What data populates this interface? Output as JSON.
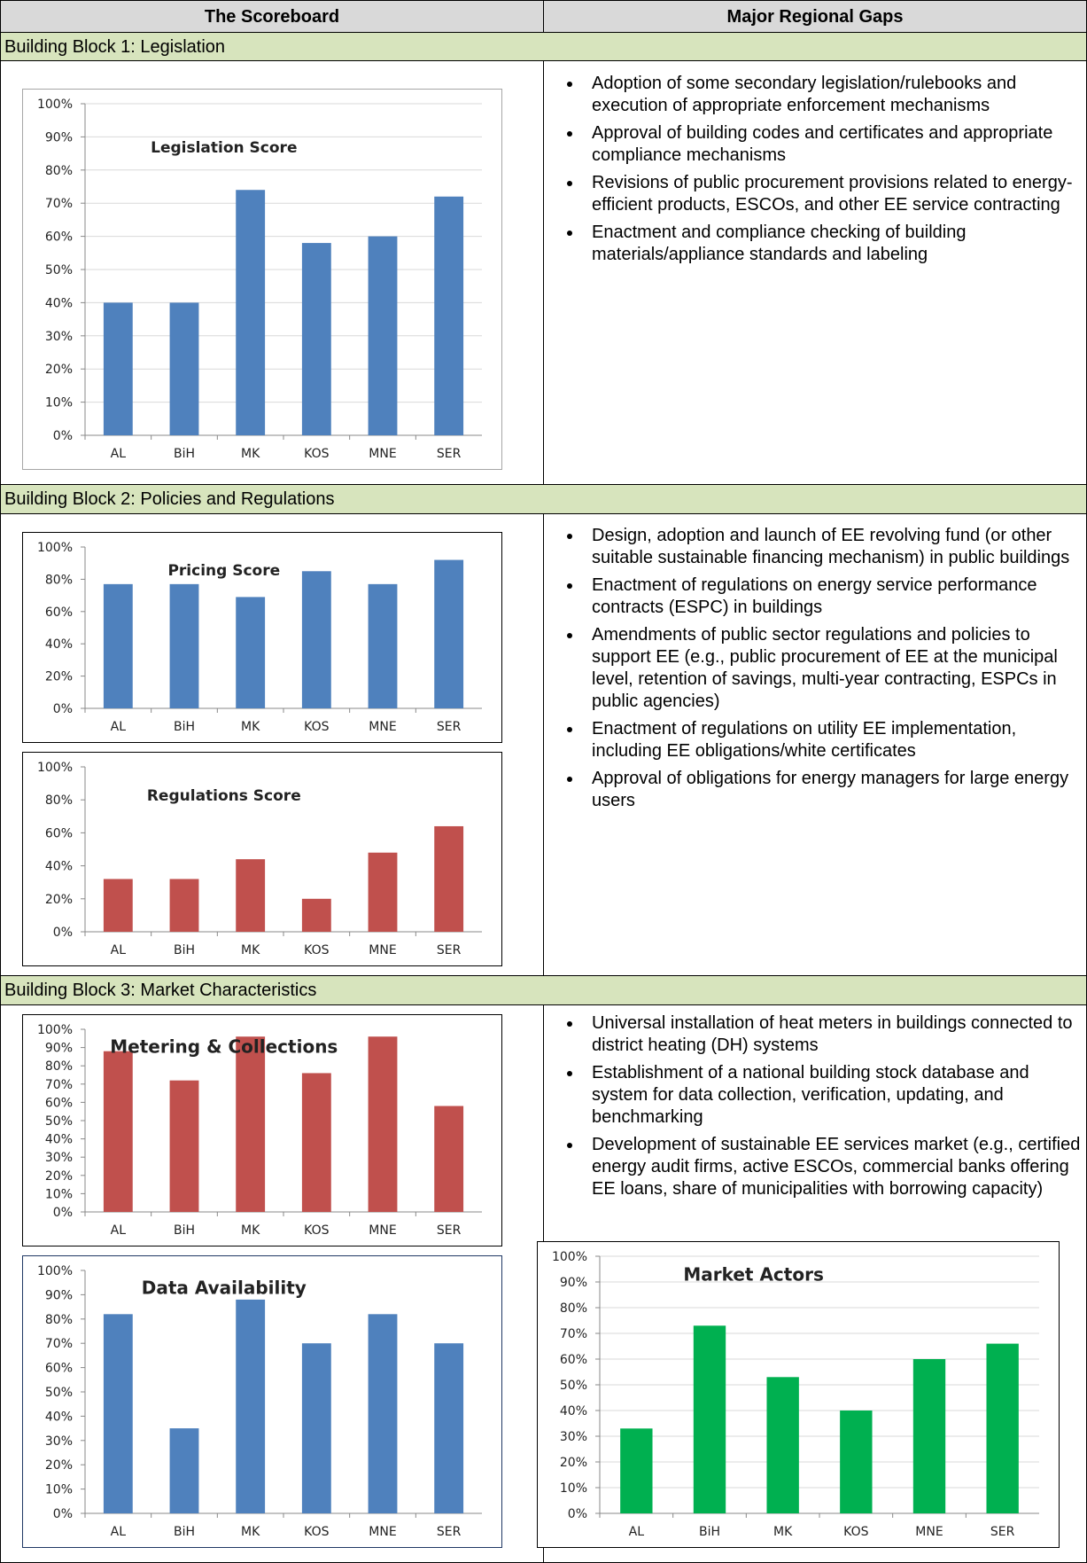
{
  "header": {
    "left": "The Scoreboard",
    "right": "Major Regional Gaps"
  },
  "blocks": [
    {
      "title": "Building Block 1: Legislation",
      "gaps": [
        "Adoption of some secondary legislation/rulebooks and execution of appropriate enforcement mechanisms",
        "Approval of building codes and certificates and appropriate compliance mechanisms",
        "Revisions of public procurement provisions related to energy-efficient products, ESCOs, and other EE service contracting",
        "Enactment and compliance checking of building materials/appliance standards and labeling"
      ]
    },
    {
      "title": "Building Block 2: Policies and Regulations",
      "gaps": [
        "Design, adoption and launch of EE revolving fund (or other suitable sustainable financing mechanism) in public buildings",
        "Enactment of regulations on energy service performance contracts (ESPC) in buildings",
        "Amendments of public sector regulations and policies to support EE (e.g., public procurement of EE at the municipal level, retention of savings, multi-year contracting, ESPCs in public agencies)",
        "Enactment of regulations on utility EE implementation, including EE obligations/white certificates",
        "Approval of obligations for energy managers for large energy users"
      ]
    },
    {
      "title": "Building Block 3: Market Characteristics",
      "gaps": [
        "Universal installation of heat meters in buildings connected to district heating (DH) systems",
        "Establishment of a national building stock database and system for data collection, verification, updating, and benchmarking",
        "Development of sustainable EE services market (e.g., certified energy audit firms, active ESCOs, commercial banks offering EE loans, share of municipalities with borrowing capacity)"
      ]
    }
  ],
  "chart_data": [
    {
      "type": "bar",
      "title": "Legislation Score",
      "categories": [
        "AL",
        "BiH",
        "MK",
        "KOS",
        "MNE",
        "SER"
      ],
      "values": [
        40,
        40,
        74,
        58,
        60,
        72
      ],
      "color": "#4f81bd",
      "grid": true,
      "ylim": [
        0,
        100
      ],
      "yticks": [
        {
          "value": 0,
          "label": "0%"
        },
        {
          "value": 10,
          "label": "10%"
        },
        {
          "value": 20,
          "label": "20%"
        },
        {
          "value": 30,
          "label": "30%"
        },
        {
          "value": 40,
          "label": "40%"
        },
        {
          "value": 50,
          "label": "50%"
        },
        {
          "value": 60,
          "label": "60%"
        },
        {
          "value": 70,
          "label": "70%"
        },
        {
          "value": 80,
          "label": "80%"
        },
        {
          "value": 90,
          "label": "90%"
        },
        {
          "value": 100,
          "label": "100%"
        }
      ]
    },
    {
      "type": "bar",
      "title": "Pricing Score",
      "categories": [
        "AL",
        "BiH",
        "MK",
        "KOS",
        "MNE",
        "SER"
      ],
      "values": [
        77,
        77,
        69,
        85,
        77,
        92
      ],
      "color": "#4f81bd",
      "grid": false,
      "ylim": [
        0,
        100
      ],
      "yticks": [
        {
          "value": 0,
          "label": "0%"
        },
        {
          "value": 20,
          "label": "20%"
        },
        {
          "value": 40,
          "label": "40%"
        },
        {
          "value": 60,
          "label": "60%"
        },
        {
          "value": 80,
          "label": "80%"
        },
        {
          "value": 100,
          "label": "100%"
        }
      ]
    },
    {
      "type": "bar",
      "title": "Regulations Score",
      "categories": [
        "AL",
        "BiH",
        "MK",
        "KOS",
        "MNE",
        "SER"
      ],
      "values": [
        32,
        32,
        44,
        20,
        48,
        64
      ],
      "color": "#c0504d",
      "grid": false,
      "ylim": [
        0,
        100
      ],
      "yticks": [
        {
          "value": 0,
          "label": "0%"
        },
        {
          "value": 20,
          "label": "20%"
        },
        {
          "value": 40,
          "label": "40%"
        },
        {
          "value": 60,
          "label": "60%"
        },
        {
          "value": 80,
          "label": "80%"
        },
        {
          "value": 100,
          "label": "100%"
        }
      ]
    },
    {
      "type": "bar",
      "title": "Metering & Collections",
      "categories": [
        "AL",
        "BiH",
        "MK",
        "KOS",
        "MNE",
        "SER"
      ],
      "values": [
        88,
        72,
        96,
        76,
        96,
        58
      ],
      "color": "#c0504d",
      "grid": false,
      "ylim": [
        0,
        100
      ],
      "yticks": [
        {
          "value": 0,
          "label": "0%"
        },
        {
          "value": 10,
          "label": "10%"
        },
        {
          "value": 20,
          "label": "20%"
        },
        {
          "value": 30,
          "label": "30%"
        },
        {
          "value": 40,
          "label": "40%"
        },
        {
          "value": 50,
          "label": "50%"
        },
        {
          "value": 60,
          "label": "60%"
        },
        {
          "value": 70,
          "label": "70%"
        },
        {
          "value": 80,
          "label": "80%"
        },
        {
          "value": 90,
          "label": "90%"
        },
        {
          "value": 100,
          "label": "100%"
        }
      ]
    },
    {
      "type": "bar",
      "title": "Data Availability",
      "categories": [
        "AL",
        "BiH",
        "MK",
        "KOS",
        "MNE",
        "SER"
      ],
      "values": [
        82,
        35,
        88,
        70,
        82,
        70
      ],
      "color": "#4f81bd",
      "grid": false,
      "ylim": [
        0,
        100
      ],
      "yticks": [
        {
          "value": 0,
          "label": "0%"
        },
        {
          "value": 10,
          "label": "10%"
        },
        {
          "value": 20,
          "label": "20%"
        },
        {
          "value": 30,
          "label": "30%"
        },
        {
          "value": 40,
          "label": "40%"
        },
        {
          "value": 50,
          "label": "50%"
        },
        {
          "value": 60,
          "label": "60%"
        },
        {
          "value": 70,
          "label": "70%"
        },
        {
          "value": 80,
          "label": "80%"
        },
        {
          "value": 90,
          "label": "90%"
        },
        {
          "value": 100,
          "label": "100%"
        }
      ]
    },
    {
      "type": "bar",
      "title": "Market Actors",
      "categories": [
        "AL",
        "BiH",
        "MK",
        "KOS",
        "MNE",
        "SER"
      ],
      "values": [
        33,
        73,
        53,
        40,
        60,
        66
      ],
      "color": "#00b050",
      "grid": true,
      "ylim": [
        0,
        100
      ],
      "yticks": [
        {
          "value": 0,
          "label": "0%"
        },
        {
          "value": 10,
          "label": "10%"
        },
        {
          "value": 20,
          "label": "20%"
        },
        {
          "value": 30,
          "label": "30%"
        },
        {
          "value": 40,
          "label": "40%"
        },
        {
          "value": 50,
          "label": "50%"
        },
        {
          "value": 60,
          "label": "60%"
        },
        {
          "value": 70,
          "label": "70%"
        },
        {
          "value": 80,
          "label": "80%"
        },
        {
          "value": 90,
          "label": "90%"
        },
        {
          "value": 100,
          "label": "100%"
        }
      ]
    }
  ]
}
